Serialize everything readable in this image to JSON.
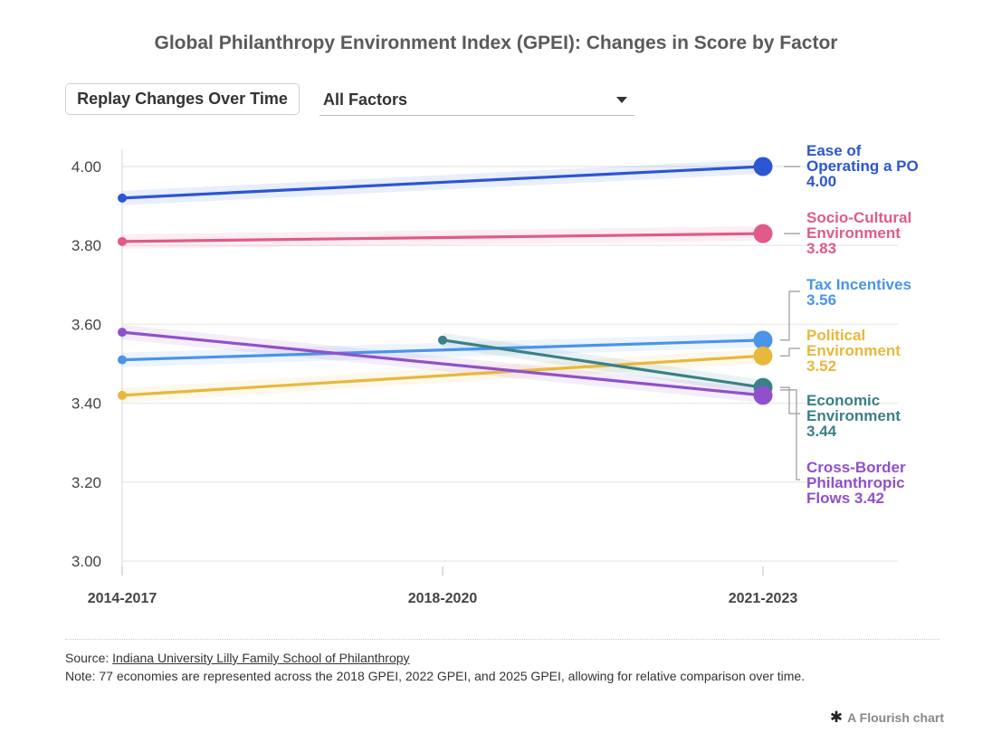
{
  "header": {
    "title": "Global Philanthropy Environment Index (GPEI): Changes in Score by Factor"
  },
  "controls": {
    "replay_label": "Replay Changes Over Time",
    "filter_value": "All Factors"
  },
  "chart_data": {
    "type": "line",
    "title": "Global Philanthropy Environment Index (GPEI): Changes in Score by Factor",
    "xlabel": "",
    "ylabel": "",
    "categories": [
      "2014-2017",
      "2018-2020",
      "2021-2023"
    ],
    "ylim": [
      3.0,
      4.0
    ],
    "yticks": [
      "3.00",
      "3.20",
      "3.40",
      "3.60",
      "3.80",
      "4.00"
    ],
    "grid": true,
    "legend": "end-labels",
    "series": [
      {
        "name": "Ease of Operating a PO",
        "label_lines": [
          "Ease of",
          "Operating a PO",
          "4.00"
        ],
        "color": "#2b56d4",
        "values": [
          3.92,
          null,
          4.0
        ]
      },
      {
        "name": "Socio-Cultural Environment",
        "label_lines": [
          "Socio-Cultural",
          "Environment",
          "3.83"
        ],
        "color": "#e05a8c",
        "values": [
          3.81,
          null,
          3.83
        ]
      },
      {
        "name": "Tax Incentives",
        "label_lines": [
          "Tax Incentives",
          "3.56"
        ],
        "color": "#4a94ea",
        "values": [
          3.51,
          null,
          3.56
        ]
      },
      {
        "name": "Political Environment",
        "label_lines": [
          "Political",
          "Environment",
          "3.52"
        ],
        "color": "#e8b83c",
        "values": [
          3.42,
          null,
          3.52
        ]
      },
      {
        "name": "Economic Environment",
        "label_lines": [
          "Economic",
          "Environment",
          "3.44"
        ],
        "color": "#3a8088",
        "values": [
          null,
          3.56,
          3.44
        ]
      },
      {
        "name": "Cross-Border Philanthropic Flows",
        "label_lines": [
          "Cross-Border",
          "Philanthropic",
          "Flows 3.42"
        ],
        "color": "#9050cc",
        "values": [
          3.58,
          null,
          3.42
        ]
      }
    ]
  },
  "footer": {
    "source_prefix": "Source: ",
    "source_link": "Indiana University Lilly Family School of Philanthropy",
    "note": "Note: 77 economies are represented across the 2018 GPEI, 2022 GPEI, and 2025 GPEI, allowing for relative comparison over time.",
    "credit": "A Flourish chart",
    "credit_icon": "asterisk-icon"
  }
}
